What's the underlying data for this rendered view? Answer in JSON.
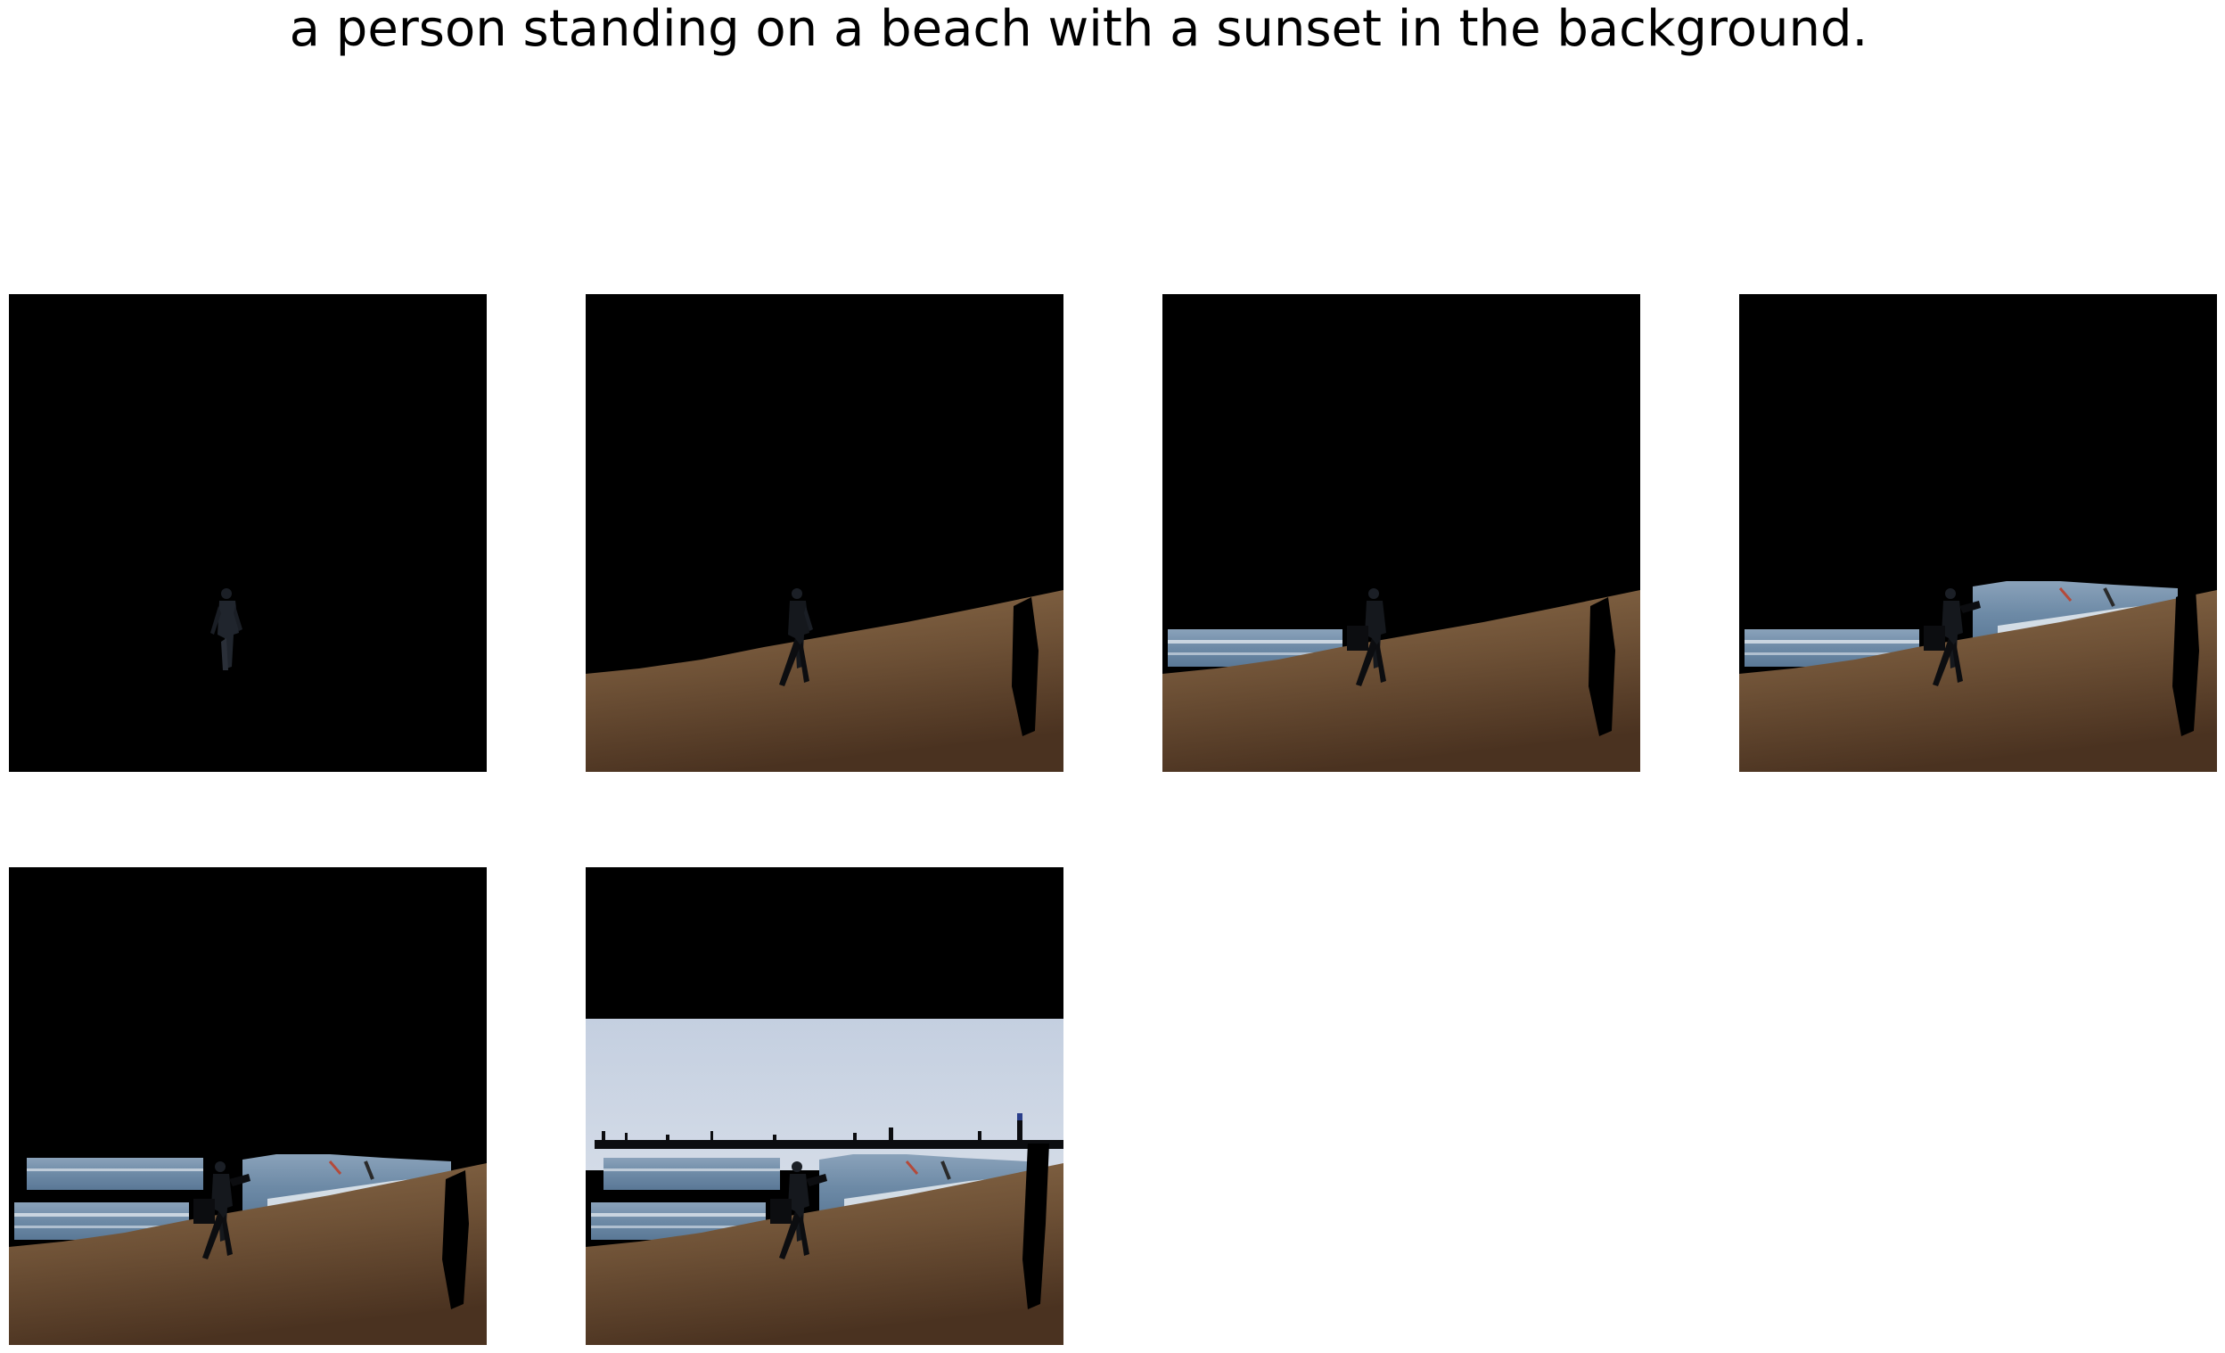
{
  "caption": "a person standing on a beach with a sunset in the background.",
  "colors": {
    "masked": "#000000",
    "sand_light": "#8a6a48",
    "sand_dark": "#4a3220",
    "sea": "#6f8fa8",
    "sea_foam": "#dfe6ec",
    "sky_light": "#c9d4e4",
    "sky_dark": "#9fb1c9",
    "silhouette": "#0a0a0a"
  },
  "panels": [
    {
      "id": "step-1",
      "visible_regions": [
        "person"
      ]
    },
    {
      "id": "step-2",
      "visible_regions": [
        "person",
        "sand"
      ]
    },
    {
      "id": "step-3",
      "visible_regions": [
        "person",
        "sand",
        "sea-left"
      ]
    },
    {
      "id": "step-4",
      "visible_regions": [
        "person",
        "sand",
        "sea-left",
        "sea-right"
      ]
    },
    {
      "id": "step-5",
      "visible_regions": [
        "person",
        "sand",
        "sea-left",
        "sea-right",
        "sea-mid"
      ]
    },
    {
      "id": "step-6",
      "visible_regions": [
        "person",
        "sand",
        "sea-left",
        "sea-right",
        "sea-mid",
        "sky",
        "pier"
      ]
    }
  ]
}
